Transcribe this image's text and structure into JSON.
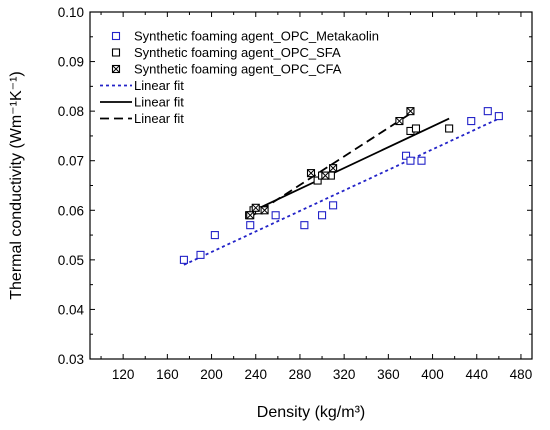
{
  "chart_data": {
    "type": "scatter",
    "title": "",
    "xlabel": "Density (kg/m³)",
    "ylabel": "Thermal conductivity (Wm⁻¹K⁻¹)",
    "xlim": [
      90,
      490
    ],
    "ylim": [
      0.03,
      0.1
    ],
    "xticks": [
      120,
      160,
      200,
      240,
      280,
      320,
      360,
      400,
      440,
      480
    ],
    "yticks": [
      0.03,
      0.04,
      0.05,
      0.06,
      0.07,
      0.08,
      0.09,
      0.1
    ],
    "xtick_labels": [
      "120",
      "160",
      "200",
      "240",
      "280",
      "320",
      "360",
      "400",
      "440",
      "480"
    ],
    "ytick_labels": [
      "0.03",
      "0.04",
      "0.05",
      "0.06",
      "0.07",
      "0.08",
      "0.09",
      "0.10"
    ],
    "grid": false,
    "legend_position": "top-left",
    "series": [
      {
        "name": "Synthetic foaming agent_OPC_Metakaolin",
        "marker": "open-square",
        "color": "#2323c8",
        "points": [
          [
            175,
            0.05
          ],
          [
            190,
            0.051
          ],
          [
            203,
            0.055
          ],
          [
            235,
            0.057
          ],
          [
            258,
            0.059
          ],
          [
            284,
            0.057
          ],
          [
            300,
            0.059
          ],
          [
            310,
            0.061
          ],
          [
            376,
            0.071
          ],
          [
            380,
            0.07
          ],
          [
            390,
            0.07
          ],
          [
            435,
            0.078
          ],
          [
            450,
            0.08
          ],
          [
            460,
            0.079
          ]
        ]
      },
      {
        "name": "Synthetic foaming agent_OPC_SFA",
        "marker": "open-square",
        "color": "#000000",
        "points": [
          [
            234,
            0.059
          ],
          [
            238,
            0.06
          ],
          [
            243,
            0.06
          ],
          [
            296,
            0.066
          ],
          [
            300,
            0.067
          ],
          [
            308,
            0.067
          ],
          [
            380,
            0.076
          ],
          [
            385,
            0.0765
          ],
          [
            415,
            0.0765
          ]
        ]
      },
      {
        "name": "Synthetic foaming agent_OPC_CFA",
        "marker": "crossed-square",
        "color": "#000000",
        "points": [
          [
            235,
            0.059
          ],
          [
            240,
            0.0605
          ],
          [
            248,
            0.06
          ],
          [
            290,
            0.0675
          ],
          [
            303,
            0.067
          ],
          [
            310,
            0.0685
          ],
          [
            370,
            0.078
          ],
          [
            380,
            0.08
          ]
        ]
      },
      {
        "name": "Linear fit",
        "type": "line",
        "style": "dotted",
        "color": "#2323c8",
        "points": [
          [
            175,
            0.049
          ],
          [
            460,
            0.0785
          ]
        ]
      },
      {
        "name": "Linear fit",
        "type": "line",
        "style": "solid",
        "color": "#000000",
        "points": [
          [
            234,
            0.0595
          ],
          [
            415,
            0.0785
          ]
        ]
      },
      {
        "name": "Linear fit",
        "type": "line",
        "style": "dashed",
        "color": "#000000",
        "points": [
          [
            234,
            0.0585
          ],
          [
            380,
            0.0795
          ]
        ]
      }
    ]
  }
}
